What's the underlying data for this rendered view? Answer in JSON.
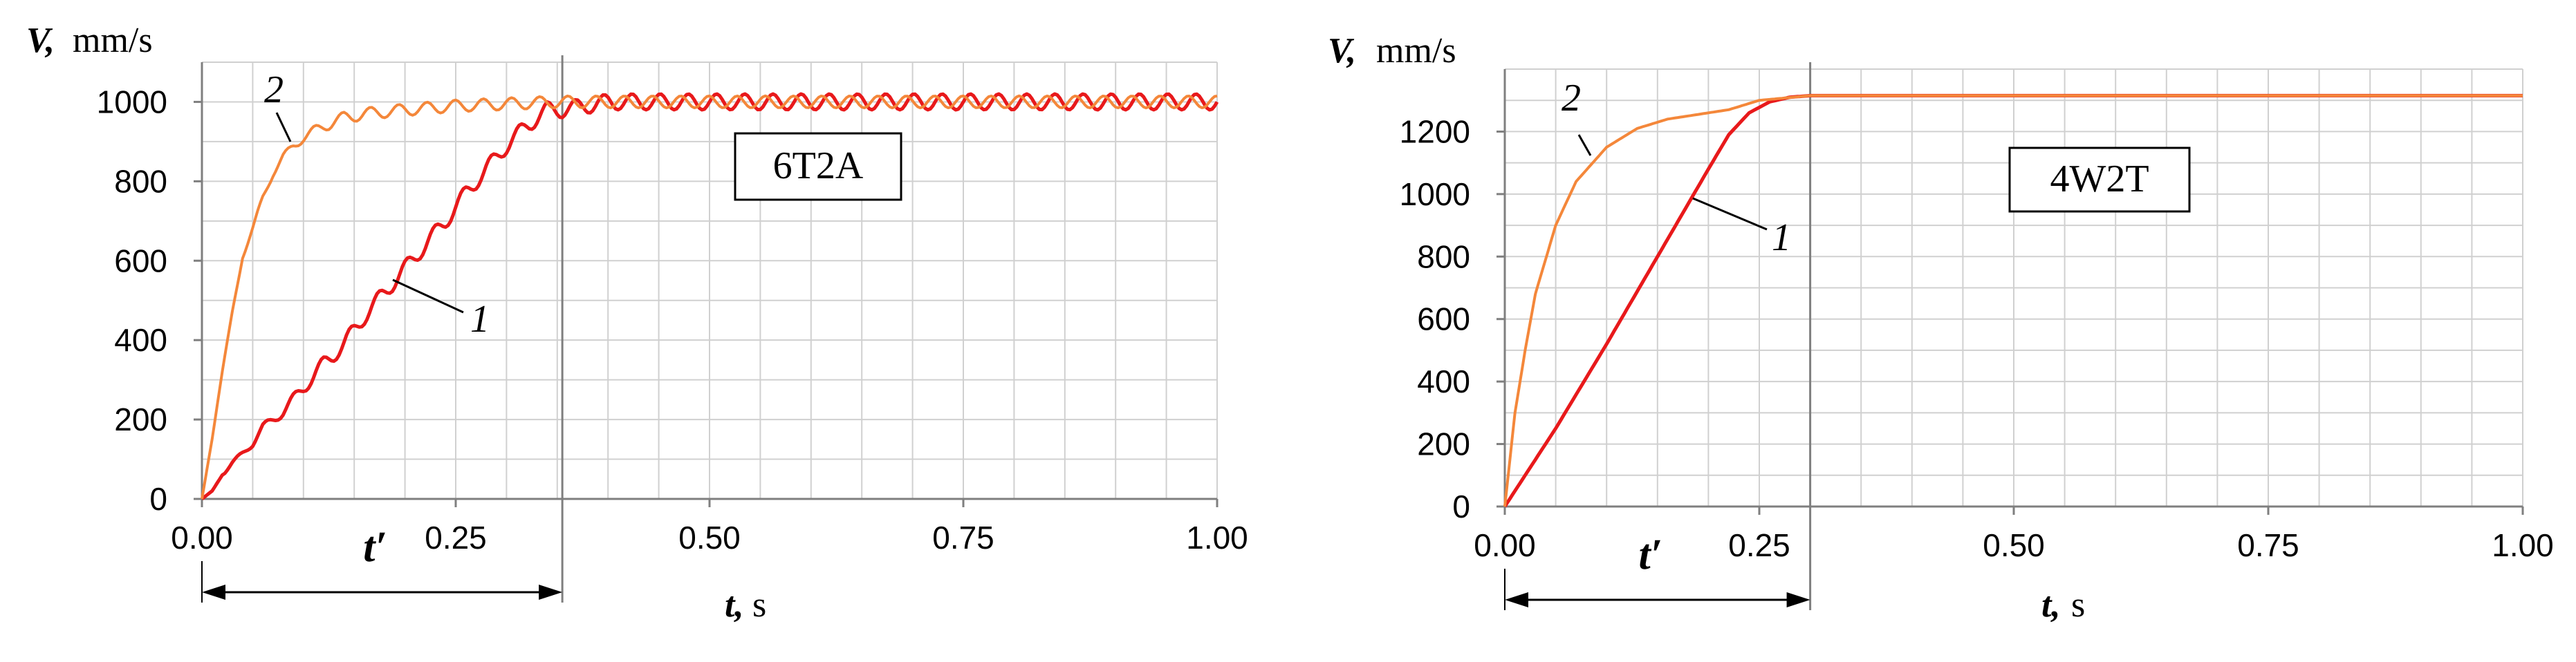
{
  "chart_data": [
    {
      "type": "line",
      "title": "6T2A",
      "ylabel_symbol": "V,",
      "ylabel_unit": "mm/s",
      "xlabel_symbol": "t,",
      "xlabel_unit": "s",
      "xlim": [
        0,
        1.0
      ],
      "ylim": [
        0,
        1100
      ],
      "x_ticks": [
        "0.00",
        "0.25",
        "0.50",
        "0.75",
        "1.00"
      ],
      "y_ticks": [
        "0",
        "200",
        "400",
        "600",
        "800",
        "1000"
      ],
      "grid": true,
      "t_prime_label": "t′",
      "t_prime": 0.355,
      "series": [
        {
          "name": "1",
          "color": "#e8191b",
          "x": [
            0,
            0.01,
            0.02,
            0.03,
            0.05,
            0.06,
            0.08,
            0.1,
            0.12,
            0.14,
            0.16,
            0.18,
            0.2,
            0.22,
            0.24,
            0.26,
            0.28,
            0.3,
            0.32,
            0.34,
            0.355,
            0.4,
            0.5,
            0.6,
            0.7,
            0.8,
            0.9,
            1.0
          ],
          "y": [
            0,
            20,
            60,
            90,
            140,
            180,
            220,
            280,
            340,
            390,
            460,
            520,
            580,
            640,
            700,
            770,
            830,
            890,
            940,
            980,
            980,
            1000,
            1000,
            1000,
            1000,
            1000,
            1000,
            1000
          ],
          "ripple": 20
        },
        {
          "name": "2",
          "color": "#f4873a",
          "x": [
            0,
            0.01,
            0.02,
            0.03,
            0.04,
            0.05,
            0.06,
            0.07,
            0.08,
            0.09,
            0.1,
            0.12,
            0.14,
            0.16,
            0.2,
            0.25,
            0.3,
            0.35,
            0.4,
            0.5,
            0.6,
            0.7,
            0.8,
            0.9,
            1.0
          ],
          "y": [
            0,
            150,
            320,
            470,
            610,
            680,
            760,
            820,
            860,
            890,
            910,
            940,
            960,
            970,
            980,
            990,
            995,
            1000,
            1000,
            1000,
            1000,
            1000,
            1000,
            1000,
            1000
          ],
          "ripple": 15
        }
      ]
    },
    {
      "type": "line",
      "title": "4W2T",
      "ylabel_symbol": "V,",
      "ylabel_unit": "mm/s",
      "xlabel_symbol": "t,",
      "xlabel_unit": "s",
      "xlim": [
        0,
        1.0
      ],
      "ylim": [
        0,
        1400
      ],
      "x_ticks": [
        "0.00",
        "0.25",
        "0.50",
        "0.75",
        "1.00"
      ],
      "y_ticks": [
        "0",
        "200",
        "400",
        "600",
        "800",
        "1000",
        "1200"
      ],
      "grid": true,
      "t_prime_label": "t′",
      "t_prime": 0.3,
      "series": [
        {
          "name": "1",
          "color": "#e8191b",
          "x": [
            0,
            0.05,
            0.1,
            0.15,
            0.2,
            0.22,
            0.24,
            0.26,
            0.28,
            0.3,
            0.35,
            0.5,
            0.75,
            1.0
          ],
          "y": [
            0,
            250,
            520,
            800,
            1080,
            1190,
            1260,
            1295,
            1310,
            1315,
            1315,
            1315,
            1315,
            1315
          ]
        },
        {
          "name": "2",
          "color": "#f4873a",
          "x": [
            0,
            0.01,
            0.02,
            0.03,
            0.05,
            0.07,
            0.1,
            0.13,
            0.16,
            0.2,
            0.22,
            0.25,
            0.3,
            0.5,
            1.0
          ],
          "y": [
            0,
            300,
            500,
            680,
            900,
            1040,
            1150,
            1210,
            1240,
            1260,
            1270,
            1300,
            1315,
            1315,
            1315
          ]
        }
      ]
    }
  ]
}
